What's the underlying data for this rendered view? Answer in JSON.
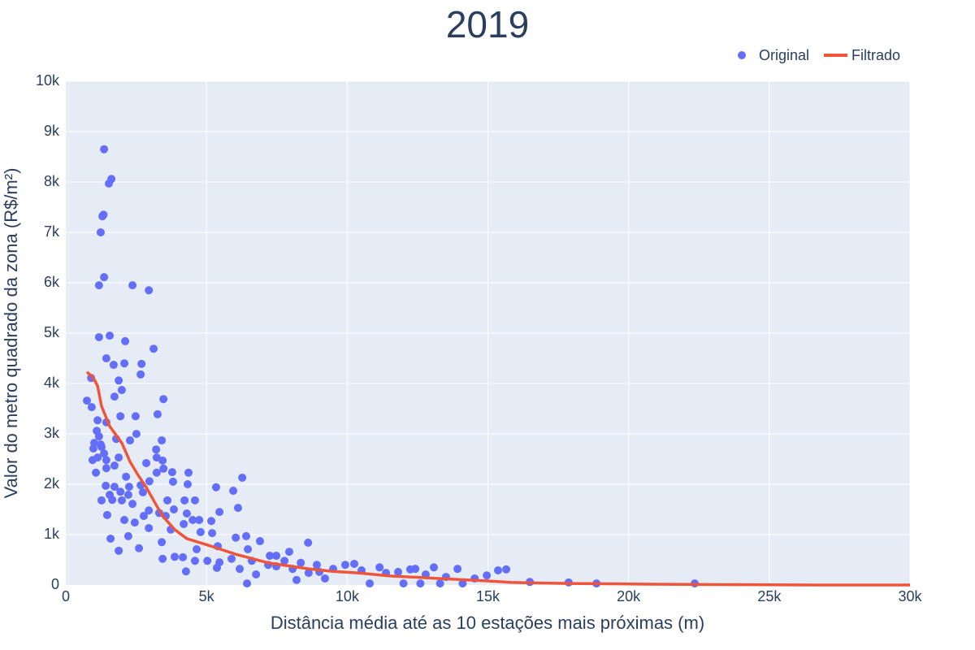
{
  "chart_data": {
    "type": "scatter",
    "title": "2019",
    "x_label": "Distância média até as 10 estações mais próximas (m)",
    "y_label": "Valor do metro quadrado da zona (R$/m²)",
    "xlim": [
      0,
      30000
    ],
    "ylim": [
      0,
      10000
    ],
    "xticks": [
      0,
      {
        "value": 5000,
        "label": "5k"
      },
      {
        "value": 10000,
        "label": "10k"
      },
      {
        "value": 15000,
        "label": "15k"
      },
      {
        "value": 20000,
        "label": "20k"
      },
      {
        "value": 25000,
        "label": "25k"
      },
      {
        "value": 30000,
        "label": "30k"
      }
    ],
    "yticks": [
      0,
      {
        "value": 1000,
        "label": "1k"
      },
      {
        "value": 2000,
        "label": "2k"
      },
      {
        "value": 3000,
        "label": "3k"
      },
      {
        "value": 4000,
        "label": "4k"
      },
      {
        "value": 5000,
        "label": "5k"
      },
      {
        "value": 6000,
        "label": "6k"
      },
      {
        "value": 7000,
        "label": "7k"
      },
      {
        "value": 8000,
        "label": "8k"
      },
      {
        "value": 9000,
        "label": "9k"
      },
      {
        "value": 10000,
        "label": "10k"
      }
    ],
    "grid": true,
    "legend": "top-right",
    "series": [
      {
        "name": "Original",
        "mode": "markers",
        "color": "#636efa",
        "x": [
          1360,
          1620,
          1530,
          1300,
          1340,
          1240,
          1360,
          1180,
          2370,
          2950,
          1180,
          1560,
          2110,
          1440,
          2080,
          1700,
          2690,
          2660,
          3120,
          1880,
          900,
          750,
          920,
          3470,
          1730,
          1990,
          2480,
          1940,
          3260,
          1130,
          1440,
          1100,
          1180,
          2510,
          3410,
          2280,
          1010,
          1240,
          1790,
          1270,
          3210,
          980,
          1360,
          3230,
          1880,
          950,
          1440,
          1130,
          3440,
          2860,
          1730,
          1440,
          3470,
          1070,
          4360,
          3230,
          3780,
          2140,
          6270,
          2970,
          3810,
          4330,
          1420,
          2250,
          2660,
          1730,
          5340,
          5950,
          1940,
          1560,
          2220,
          2740,
          1650,
          3610,
          4220,
          4590,
          1270,
          1990,
          2370,
          6120,
          2950,
          3840,
          5460,
          3320,
          4300,
          1470,
          2770,
          3550,
          5170,
          4740,
          4510,
          2080,
          2450,
          4190,
          2950,
          3730,
          4790,
          5200,
          2220,
          1590,
          6040,
          6410,
          6900,
          8610,
          3410,
          2600,
          1880,
          4650,
          5400,
          7940,
          6470,
          7250,
          7480,
          3440,
          4270,
          5370,
          6760,
          8200,
          9010,
          9930,
          10250,
          10510,
          11150,
          11380,
          11810,
          12240,
          12420,
          12790,
          13080,
          13510,
          13920,
          14530,
          14960,
          15360,
          15650,
          16490,
          17870,
          18860,
          22350,
          6440,
          7770,
          8350,
          8920,
          9500,
          7190,
          6610,
          5890,
          5460,
          5030,
          4590,
          4160,
          3870,
          8060,
          8630,
          9210,
          7480,
          6180,
          10800,
          12000,
          12600,
          13300,
          14100
        ],
        "values": [
          8650,
          8060,
          7970,
          7320,
          7350,
          7000,
          6110,
          5950,
          5950,
          5850,
          4920,
          4950,
          4840,
          4500,
          4400,
          4370,
          4390,
          4180,
          4690,
          4060,
          4110,
          3660,
          3530,
          3690,
          3740,
          3870,
          3350,
          3350,
          3390,
          3270,
          3230,
          3060,
          2950,
          3000,
          2870,
          2870,
          2820,
          2790,
          2900,
          2740,
          2690,
          2710,
          2610,
          2530,
          2530,
          2480,
          2480,
          2530,
          2470,
          2420,
          2370,
          2320,
          2310,
          2230,
          2230,
          2230,
          2240,
          2150,
          2130,
          2060,
          2050,
          2000,
          1970,
          1950,
          1980,
          1950,
          1940,
          1870,
          1850,
          1790,
          1790,
          1840,
          1690,
          1680,
          1680,
          1680,
          1680,
          1680,
          1610,
          1530,
          1480,
          1500,
          1450,
          1430,
          1420,
          1390,
          1370,
          1370,
          1270,
          1290,
          1290,
          1290,
          1240,
          1210,
          1130,
          1100,
          1050,
          1030,
          970,
          920,
          940,
          970,
          870,
          840,
          850,
          730,
          680,
          710,
          770,
          660,
          710,
          580,
          580,
          520,
          270,
          340,
          210,
          100,
          260,
          400,
          420,
          290,
          350,
          240,
          260,
          310,
          320,
          210,
          350,
          160,
          320,
          130,
          190,
          290,
          310,
          60,
          50,
          30,
          30,
          30,
          480,
          440,
          400,
          320,
          400,
          480,
          520,
          450,
          480,
          480,
          550,
          560,
          320,
          240,
          130,
          370,
          320,
          30,
          30,
          30,
          30,
          30
        ]
      },
      {
        "name": "Filtrado",
        "mode": "lines",
        "color": "#ef553b",
        "x": [
          750,
          980,
          1130,
          1270,
          1560,
          1990,
          2280,
          2570,
          2860,
          3150,
          3440,
          3870,
          4300,
          5170,
          6040,
          7190,
          8630,
          9500,
          10370,
          11520,
          13250,
          14990,
          15850,
          17870,
          20760,
          23650,
          26540,
          30000
        ],
        "values": [
          4230,
          4110,
          3950,
          3550,
          3150,
          2820,
          2450,
          2180,
          1940,
          1650,
          1370,
          1100,
          920,
          770,
          610,
          440,
          320,
          270,
          240,
          180,
          130,
          80,
          50,
          30,
          16,
          8,
          0,
          0
        ]
      }
    ]
  }
}
